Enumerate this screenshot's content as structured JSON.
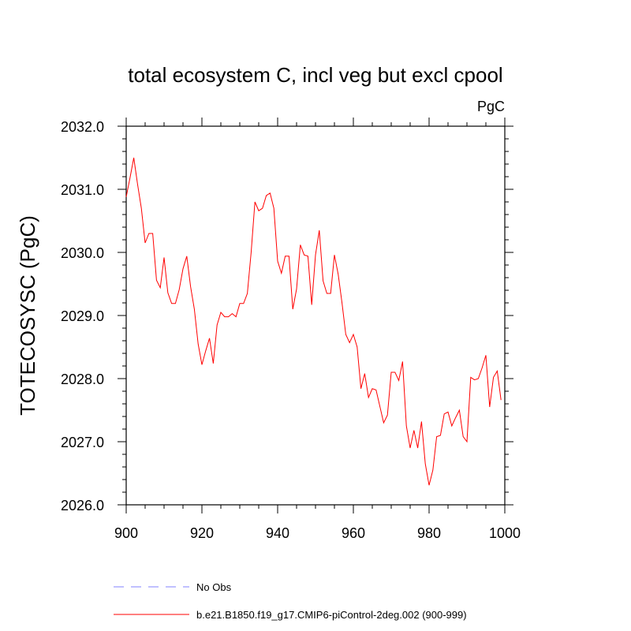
{
  "chart_data": {
    "type": "line",
    "title": "total ecosystem C, incl veg but excl cpool",
    "units_label": "PgC",
    "ylabel": "TOTECOSYSC  (PgC)",
    "xlabel": "",
    "xlim": [
      900,
      1000
    ],
    "ylim": [
      2026.0,
      2032.0
    ],
    "x_ticks": [
      "900",
      "920",
      "940",
      "960",
      "980",
      "1000"
    ],
    "y_ticks": [
      "2026.0",
      "2027.0",
      "2028.0",
      "2029.0",
      "2030.0",
      "2031.0",
      "2032.0"
    ],
    "grid": false,
    "legend_position": "bottom",
    "series": [
      {
        "name": "No Obs",
        "color": "#8080ff",
        "dash": "dashed",
        "x": [],
        "y": []
      },
      {
        "name": "b.e21.B1850.f19_g17.CMIP6-piControl-2deg.002 (900-999)",
        "color": "#ff0000",
        "dash": "solid",
        "x": [
          900,
          901,
          902,
          903,
          904,
          905,
          906,
          907,
          908,
          909,
          910,
          911,
          912,
          913,
          914,
          915,
          916,
          917,
          918,
          919,
          920,
          921,
          922,
          923,
          924,
          925,
          926,
          927,
          928,
          929,
          930,
          931,
          932,
          933,
          934,
          935,
          936,
          937,
          938,
          939,
          940,
          941,
          942,
          943,
          944,
          945,
          946,
          947,
          948,
          949,
          950,
          951,
          952,
          953,
          954,
          955,
          956,
          957,
          958,
          959,
          960,
          961,
          962,
          963,
          964,
          965,
          966,
          967,
          968,
          969,
          970,
          971,
          972,
          973,
          974,
          975,
          976,
          977,
          978,
          979,
          980,
          981,
          982,
          983,
          984,
          985,
          986,
          987,
          988,
          989,
          990,
          991,
          992,
          993,
          994,
          995,
          996,
          997,
          998,
          999
        ],
        "y": [
          2030.88,
          2031.18,
          2031.5,
          2031.08,
          2030.7,
          2030.15,
          2030.3,
          2030.3,
          2029.56,
          2029.44,
          2029.92,
          2029.36,
          2029.19,
          2029.19,
          2029.41,
          2029.74,
          2029.94,
          2029.46,
          2029.1,
          2028.55,
          2028.22,
          2028.44,
          2028.64,
          2028.24,
          2028.85,
          2029.05,
          2028.98,
          2028.98,
          2029.03,
          2028.98,
          2029.19,
          2029.19,
          2029.35,
          2030.0,
          2030.8,
          2030.66,
          2030.7,
          2030.9,
          2030.94,
          2030.7,
          2029.86,
          2029.67,
          2029.94,
          2029.94,
          2029.1,
          2029.42,
          2030.12,
          2029.96,
          2029.94,
          2029.17,
          2029.96,
          2030.35,
          2029.55,
          2029.35,
          2029.35,
          2029.96,
          2029.65,
          2029.2,
          2028.7,
          2028.57,
          2028.7,
          2028.5,
          2027.84,
          2028.08,
          2027.7,
          2027.84,
          2027.82,
          2027.56,
          2027.3,
          2027.42,
          2028.1,
          2028.1,
          2027.97,
          2028.27,
          2027.25,
          2026.9,
          2027.18,
          2026.9,
          2027.32,
          2026.65,
          2026.31,
          2026.55,
          2027.08,
          2027.1,
          2027.44,
          2027.47,
          2027.25,
          2027.38,
          2027.5,
          2027.08,
          2027.0,
          2028.02,
          2027.98,
          2028.0,
          2028.17,
          2028.37,
          2027.55,
          2028.02,
          2028.12,
          2027.66
        ]
      }
    ]
  }
}
